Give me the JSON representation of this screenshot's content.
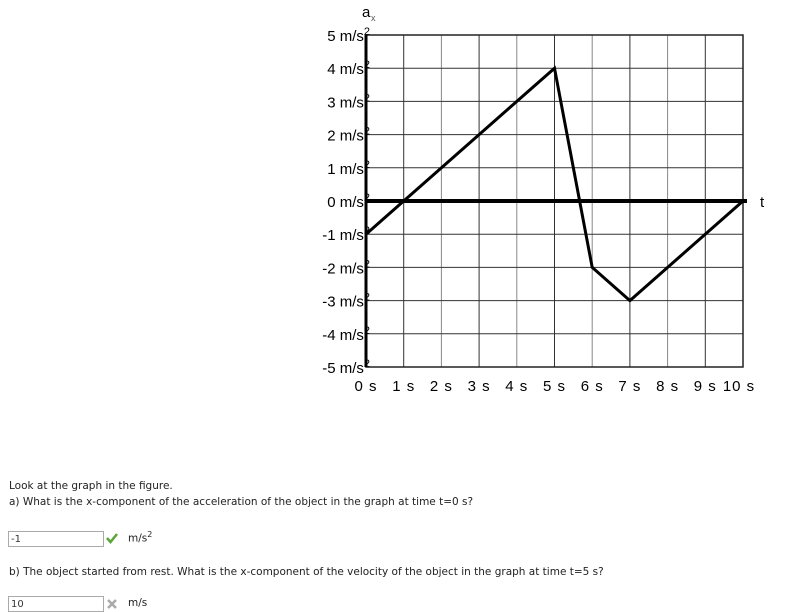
{
  "chart_data": {
    "type": "line",
    "title": "",
    "ylabel": "a",
    "ylabel_sub": "x",
    "xlabel": "t",
    "x": [
      0,
      5,
      6,
      7,
      10
    ],
    "y": [
      -1,
      4,
      -2,
      -3,
      0
    ],
    "xlim": [
      0,
      10
    ],
    "ylim": [
      -5,
      5
    ],
    "x_ticks": [
      "0 s",
      "1 s",
      "2 s",
      "3 s",
      "4 s",
      "5 s",
      "6 s",
      "7 s",
      "8 s",
      "9 s",
      "10 s"
    ],
    "y_ticks": [
      "5 m/s",
      "4 m/s",
      "3 m/s",
      "2 m/s",
      "1 m/s",
      "0 m/s",
      "-1 m/s",
      "-2 m/s",
      "-3 m/s",
      "-4 m/s",
      "-5 m/s"
    ],
    "y_tick_sup": "2",
    "grid": true
  },
  "question": {
    "intro": "Look at the graph in the figure.",
    "a_text": "a) What is the x-component of the acceleration of the object in the graph at time t=0 s?",
    "a_value": "-1",
    "a_unit": "m/s",
    "a_unit_sup": "2",
    "a_status": "correct",
    "b_text": "b) The object started from rest. What is the x-component of the velocity of the object in the graph at time t=5 s?",
    "b_value": "10",
    "b_unit": "m/s",
    "b_status": "incorrect"
  },
  "colors": {
    "correct": "#5aa63a",
    "incorrect": "#aaaaaa"
  }
}
